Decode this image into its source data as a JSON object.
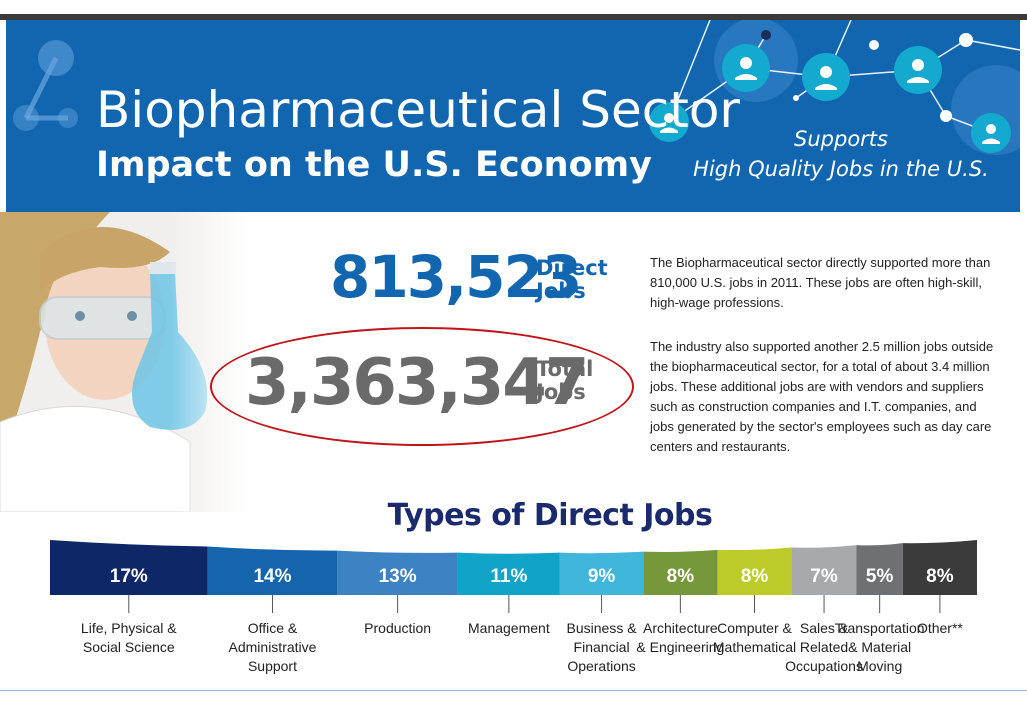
{
  "banner": {
    "title": "Biopharmaceutical Sector",
    "subtitle": "Impact on the U.S. Economy",
    "supports_line1": "Supports",
    "supports_line2": "High Quality Jobs in the U.S."
  },
  "stats": {
    "direct_number": "813,523",
    "direct_label_line1": "Direct",
    "direct_label_line2": "Jobs",
    "total_number": "3,363,347",
    "total_label_line1": "Total",
    "total_label_line2": "Jobs"
  },
  "paragraphs": {
    "p1": "The Biopharmaceutical sector directly supported more than 810,000 U.S. jobs in 2011. These jobs are often high-skill, high-wage professions.",
    "p2": "The industry also supported another 2.5 million jobs outside the biopharmaceutical sector, for a total of about 3.4 million jobs. These additional jobs are with vendors and suppliers such as construction companies and I.T. companies, and jobs generated by the sector's employees such as day care centers and restaurants."
  },
  "colors": {
    "banner_blue": "#1266b0",
    "highlight_red": "#c0141a"
  },
  "chart_data": {
    "type": "bar",
    "title": "Types of Direct Jobs",
    "unit": "%",
    "categories": [
      "Life, Physical & Social Science",
      "Office & Administrative Support",
      "Production",
      "Management",
      "Business & Financial Operations",
      "Architecture & Engineering",
      "Computer & Mathematical",
      "Sales & Related Occupations",
      "Transportation & Material Moving",
      "Other**"
    ],
    "values": [
      17,
      14,
      13,
      11,
      9,
      8,
      8,
      7,
      5,
      8
    ],
    "value_labels": [
      "17%",
      "14%",
      "13%",
      "11%",
      "9%",
      "8%",
      "8%",
      "7%",
      "5%",
      "8%"
    ],
    "category_lines": [
      [
        "Life, Physical &",
        "Social Science"
      ],
      [
        "Office &",
        "Administrative",
        "Support"
      ],
      [
        "Production"
      ],
      [
        "Management"
      ],
      [
        "Business &",
        "Financial",
        "Operations"
      ],
      [
        "Architecture",
        "& Engineering"
      ],
      [
        "Computer &",
        "Mathematical"
      ],
      [
        "Sales &",
        "Related",
        "Occupations"
      ],
      [
        "Transportation",
        "& Material",
        "Moving"
      ],
      [
        "Other**"
      ]
    ],
    "colors": [
      "#0e2766",
      "#1565ad",
      "#3d82c3",
      "#12a3c8",
      "#3fb6da",
      "#77983a",
      "#bccb2a",
      "#a7a9ac",
      "#6f7073",
      "#3b3b3b"
    ]
  }
}
